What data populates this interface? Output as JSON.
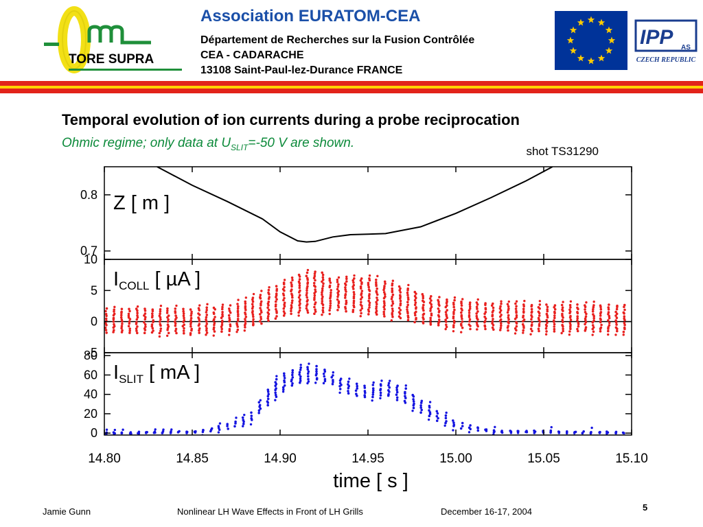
{
  "header": {
    "logo_text": "TORE SUPRA",
    "association": "Association  EURATOM-CEA",
    "lines": [
      "Département de Recherches sur la Fusion Contrôlée",
      "CEA - CADARACHE",
      "13108 Saint-Paul-lez-Durance   FRANCE"
    ],
    "right_logo_text": "IPP",
    "right_logo_sub": "AS",
    "right_logo_caption": "CZECH REPUBLIC"
  },
  "slide": {
    "title": "Temporal evolution of ion currents during a probe reciprocation",
    "subtitle_pre": "Ohmic regime; only data at U",
    "subtitle_sub": "SLIT",
    "subtitle_post": "=-50 V are shown."
  },
  "footer": {
    "author": "Jamie Gunn",
    "talk": "Nonlinear LH Wave Effects in Front of LH Grills",
    "date": "December 16-17, 2004",
    "page": "5"
  },
  "colors": {
    "accent_blue": "#1a4fa8",
    "collector": "#e8201e",
    "slit": "#1414e0",
    "stripe_red": "#e2231a",
    "stripe_yellow": "#ffd200"
  },
  "chart_data": {
    "type": "line",
    "annotation": "shot TS31290",
    "xlabel": "time [ s ]",
    "xlim": [
      14.8,
      15.1
    ],
    "xticks": [
      "14.80",
      "14.85",
      "14.90",
      "14.95",
      "15.00",
      "15.05",
      "15.10"
    ],
    "panels": [
      {
        "name": "z",
        "label_main": "Z [ m ]",
        "label_sub": "",
        "label_tail": "",
        "style": "line",
        "color": "#000000",
        "ylim": [
          0.685,
          0.85
        ],
        "yticks": [
          "0.8",
          "0.7"
        ],
        "ytick_values": [
          0.8,
          0.7
        ],
        "x": [
          14.83,
          14.85,
          14.87,
          14.89,
          14.9,
          14.91,
          14.915,
          14.92,
          14.93,
          14.94,
          14.95,
          14.96,
          14.98,
          15.0,
          15.02,
          15.04,
          15.055
        ],
        "y": [
          0.85,
          0.817,
          0.788,
          0.757,
          0.734,
          0.718,
          0.716,
          0.717,
          0.725,
          0.729,
          0.73,
          0.731,
          0.743,
          0.767,
          0.795,
          0.825,
          0.85
        ]
      },
      {
        "name": "icoll",
        "label_main": "I",
        "label_sub": "COLL",
        "label_tail": " [ µA ]",
        "style": "bands",
        "color": "#e8201e",
        "ylim": [
          -5,
          10
        ],
        "yticks": [
          "10",
          "5",
          "0",
          "-5"
        ],
        "ytick_values": [
          10,
          5,
          0,
          -5
        ],
        "zero_line": true,
        "x": [
          14.8,
          14.85,
          14.87,
          14.88,
          14.89,
          14.9,
          14.91,
          14.92,
          14.925,
          14.93,
          14.94,
          14.95,
          14.96,
          14.97,
          14.98,
          15.0,
          15.02,
          15.05,
          15.1
        ],
        "upper": [
          2.0,
          2.0,
          2.4,
          3.2,
          4.5,
          6.0,
          7.5,
          8.0,
          7.8,
          6.5,
          7.0,
          7.0,
          6.4,
          5.6,
          4.5,
          3.3,
          2.9,
          2.7,
          2.6
        ],
        "lower": [
          -1.7,
          -1.8,
          -1.6,
          -1.0,
          -0.2,
          0.8,
          1.5,
          1.3,
          1.6,
          2.0,
          1.6,
          1.3,
          0.9,
          0.4,
          -0.3,
          -1.0,
          -1.3,
          -1.5,
          -1.6
        ]
      },
      {
        "name": "islit",
        "label_main": "I",
        "label_sub": "SLIT",
        "label_tail": " [ mA ]",
        "style": "bands",
        "color": "#1414e0",
        "ylim": [
          -2,
          83
        ],
        "yticks": [
          "80",
          "60",
          "40",
          "20",
          "0"
        ],
        "ytick_values": [
          80,
          60,
          40,
          20,
          0
        ],
        "zero_line": false,
        "x": [
          14.8,
          14.85,
          14.86,
          14.87,
          14.88,
          14.885,
          14.89,
          14.895,
          14.9,
          14.91,
          14.92,
          14.925,
          14.93,
          14.94,
          14.95,
          14.955,
          14.96,
          14.97,
          14.98,
          14.99,
          15.0,
          15.02,
          15.1
        ],
        "upper": [
          0.5,
          1.5,
          4,
          9,
          16,
          22,
          36,
          50,
          60,
          67,
          69,
          66,
          60,
          52,
          48,
          50,
          52,
          47,
          34,
          22,
          12,
          3,
          0.5
        ],
        "lower": [
          -0.5,
          0.5,
          2,
          5,
          10,
          14,
          24,
          32,
          43,
          52,
          55,
          54,
          50,
          40,
          36,
          38,
          40,
          32,
          22,
          13,
          6,
          1,
          -0.5
        ]
      }
    ]
  }
}
